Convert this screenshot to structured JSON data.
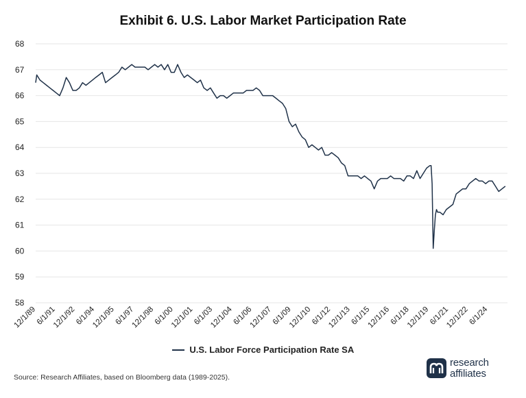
{
  "chart_data": {
    "type": "line",
    "title": "Exhibit 6. U.S. Labor Market Participation Rate",
    "xlabel": "",
    "ylabel": "",
    "ylim": [
      58,
      68
    ],
    "yticks": [
      "58",
      "59",
      "60",
      "61",
      "62",
      "63",
      "64",
      "65",
      "66",
      "67",
      "68"
    ],
    "xlim": [
      "1989-12-01",
      "2025-12-01"
    ],
    "xticks": [
      "12/1/89",
      "6/1/91",
      "12/1/92",
      "6/1/94",
      "12/1/95",
      "6/1/97",
      "12/1/98",
      "6/1/00",
      "12/1/01",
      "6/1/03",
      "12/1/04",
      "6/1/06",
      "12/1/07",
      "6/1/09",
      "12/1/10",
      "6/1/12",
      "12/1/13",
      "6/1/15",
      "12/1/16",
      "6/1/18",
      "12/1/19",
      "6/1/21",
      "12/1/22",
      "6/1/24"
    ],
    "grid": true,
    "legend_position": "bottom-center",
    "series": [
      {
        "name": "U.S. Labor Force Participation Rate SA",
        "color": "#1f3148",
        "x": [
          "1989-12-01",
          "1990-01-01",
          "1990-04-01",
          "1990-07-01",
          "1990-10-01",
          "1991-01-01",
          "1991-04-01",
          "1991-07-01",
          "1991-10-01",
          "1992-01-01",
          "1992-04-01",
          "1992-07-01",
          "1992-10-01",
          "1993-01-01",
          "1993-04-01",
          "1993-07-01",
          "1993-10-01",
          "1994-01-01",
          "1994-04-01",
          "1994-07-01",
          "1994-10-01",
          "1995-01-01",
          "1995-04-01",
          "1995-07-01",
          "1995-10-01",
          "1996-01-01",
          "1996-04-01",
          "1996-07-01",
          "1996-10-01",
          "1997-01-01",
          "1997-04-01",
          "1997-07-01",
          "1997-10-01",
          "1998-01-01",
          "1998-04-01",
          "1998-07-01",
          "1998-10-01",
          "1999-01-01",
          "1999-04-01",
          "1999-07-01",
          "1999-10-01",
          "2000-01-01",
          "2000-04-01",
          "2000-07-01",
          "2000-10-01",
          "2001-01-01",
          "2001-04-01",
          "2001-07-01",
          "2001-10-01",
          "2002-01-01",
          "2002-04-01",
          "2002-07-01",
          "2002-10-01",
          "2003-01-01",
          "2003-04-01",
          "2003-07-01",
          "2003-10-01",
          "2004-01-01",
          "2004-04-01",
          "2004-07-01",
          "2004-10-01",
          "2005-01-01",
          "2005-04-01",
          "2005-07-01",
          "2005-10-01",
          "2006-01-01",
          "2006-04-01",
          "2006-07-01",
          "2006-10-01",
          "2007-01-01",
          "2007-04-01",
          "2007-07-01",
          "2007-10-01",
          "2008-01-01",
          "2008-04-01",
          "2008-07-01",
          "2008-10-01",
          "2009-01-01",
          "2009-04-01",
          "2009-07-01",
          "2009-10-01",
          "2010-01-01",
          "2010-04-01",
          "2010-07-01",
          "2010-10-01",
          "2011-01-01",
          "2011-04-01",
          "2011-07-01",
          "2011-10-01",
          "2012-01-01",
          "2012-04-01",
          "2012-07-01",
          "2012-10-01",
          "2013-01-01",
          "2013-04-01",
          "2013-07-01",
          "2013-10-01",
          "2014-01-01",
          "2014-04-01",
          "2014-07-01",
          "2014-10-01",
          "2015-01-01",
          "2015-04-01",
          "2015-07-01",
          "2015-10-01",
          "2016-01-01",
          "2016-04-01",
          "2016-07-01",
          "2016-10-01",
          "2017-01-01",
          "2017-04-01",
          "2017-07-01",
          "2017-10-01",
          "2018-01-01",
          "2018-04-01",
          "2018-07-01",
          "2018-10-01",
          "2019-01-01",
          "2019-04-01",
          "2019-07-01",
          "2019-10-01",
          "2020-01-01",
          "2020-02-01",
          "2020-03-01",
          "2020-04-01",
          "2020-05-01",
          "2020-06-01",
          "2020-07-01",
          "2020-08-01",
          "2020-10-01",
          "2021-01-01",
          "2021-04-01",
          "2021-07-01",
          "2021-10-01",
          "2022-01-01",
          "2022-04-01",
          "2022-07-01",
          "2022-10-01",
          "2023-01-01",
          "2023-04-01",
          "2023-07-01",
          "2023-10-01",
          "2024-01-01",
          "2024-04-01",
          "2024-07-01",
          "2024-10-01",
          "2025-01-01",
          "2025-04-01",
          "2025-07-01",
          "2025-10-01"
        ],
        "values": [
          66.5,
          66.8,
          66.6,
          66.5,
          66.4,
          66.3,
          66.2,
          66.1,
          66.0,
          66.3,
          66.7,
          66.5,
          66.2,
          66.2,
          66.3,
          66.5,
          66.4,
          66.5,
          66.6,
          66.7,
          66.8,
          66.9,
          66.5,
          66.6,
          66.7,
          66.8,
          66.9,
          67.1,
          67.0,
          67.1,
          67.2,
          67.1,
          67.1,
          67.1,
          67.1,
          67.0,
          67.1,
          67.2,
          67.1,
          67.2,
          67.0,
          67.2,
          66.9,
          66.9,
          67.2,
          66.9,
          66.7,
          66.8,
          66.7,
          66.6,
          66.5,
          66.6,
          66.3,
          66.2,
          66.3,
          66.1,
          65.9,
          66.0,
          66.0,
          65.9,
          66.0,
          66.1,
          66.1,
          66.1,
          66.1,
          66.2,
          66.2,
          66.2,
          66.3,
          66.2,
          66.0,
          66.0,
          66.0,
          66.0,
          65.9,
          65.8,
          65.7,
          65.5,
          65.0,
          64.8,
          64.9,
          64.6,
          64.4,
          64.3,
          64.0,
          64.1,
          64.0,
          63.9,
          64.0,
          63.7,
          63.7,
          63.8,
          63.7,
          63.6,
          63.4,
          63.3,
          62.9,
          62.9,
          62.9,
          62.9,
          62.8,
          62.9,
          62.8,
          62.7,
          62.4,
          62.7,
          62.8,
          62.8,
          62.8,
          62.9,
          62.8,
          62.8,
          62.8,
          62.7,
          62.9,
          62.9,
          62.8,
          63.1,
          62.8,
          63.0,
          63.2,
          63.3,
          63.3,
          62.6,
          60.1,
          60.8,
          61.4,
          61.6,
          61.5,
          61.5,
          61.4,
          61.6,
          61.7,
          61.8,
          62.2,
          62.3,
          62.4,
          62.4,
          62.6,
          62.7,
          62.8,
          62.7,
          62.7,
          62.6,
          62.7,
          62.7,
          62.5,
          62.3,
          62.4,
          62.5
        ]
      }
    ]
  },
  "source_note": "Source: Research Affiliates, based on Bloomberg data (1989-2025).",
  "logo": {
    "line1": "research",
    "line2": "affiliates",
    "color": "#1f3148"
  }
}
